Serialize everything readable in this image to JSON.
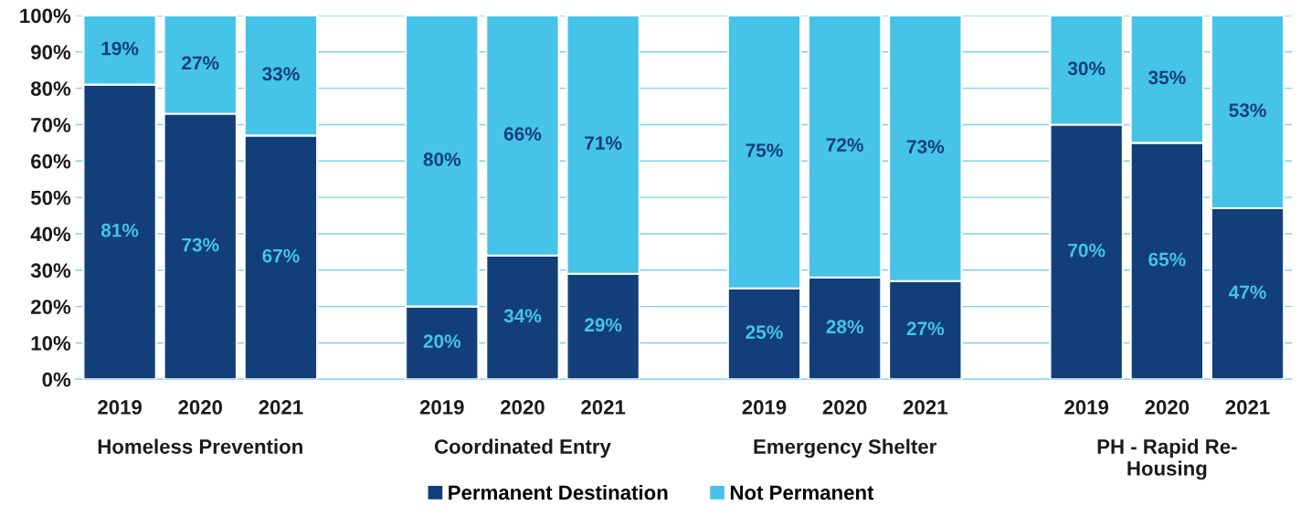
{
  "chart_data": {
    "type": "bar",
    "stacked": true,
    "categories": [
      "2019",
      "2020",
      "2021",
      null,
      "2019",
      "2020",
      "2021",
      null,
      "2019",
      "2020",
      "2021",
      null,
      "2019",
      "2020",
      "2021"
    ],
    "series": [
      {
        "name": "Permanent Destination",
        "color": "#123f7a",
        "values": [
          81,
          73,
          67,
          null,
          20,
          34,
          29,
          null,
          25,
          28,
          27,
          null,
          70,
          65,
          47
        ],
        "value_labels": [
          "81%",
          "73%",
          "67%",
          null,
          "20%",
          "34%",
          "29%",
          null,
          "25%",
          "28%",
          "27%",
          null,
          "70%",
          "65%",
          "47%"
        ]
      },
      {
        "name": "Not Permanent",
        "color": "#45c3e8",
        "values": [
          19,
          27,
          33,
          null,
          80,
          66,
          71,
          null,
          75,
          72,
          73,
          null,
          30,
          35,
          53
        ],
        "value_labels": [
          "19%",
          "27%",
          "33%",
          null,
          "80%",
          "66%",
          "71%",
          null,
          "75%",
          "72%",
          "73%",
          null,
          "30%",
          "35%",
          "53%"
        ]
      }
    ],
    "ylim": [
      0,
      100
    ],
    "yticks": [
      {
        "value": 0,
        "label": "0%"
      },
      {
        "value": 10,
        "label": "10%"
      },
      {
        "value": 20,
        "label": "20%"
      },
      {
        "value": 30,
        "label": "30%"
      },
      {
        "value": 40,
        "label": "40%"
      },
      {
        "value": 50,
        "label": "50%"
      },
      {
        "value": 60,
        "label": "60%"
      },
      {
        "value": 70,
        "label": "70%"
      },
      {
        "value": 80,
        "label": "80%"
      },
      {
        "value": 90,
        "label": "90%"
      },
      {
        "value": 100,
        "label": "100%"
      }
    ],
    "annotations": [
      "Homeless Prevention",
      "Coordinated Entry",
      "Emergency Shelter",
      "PH - Rapid Re-\nHousing"
    ],
    "grid": "y",
    "legend": "bottom"
  }
}
